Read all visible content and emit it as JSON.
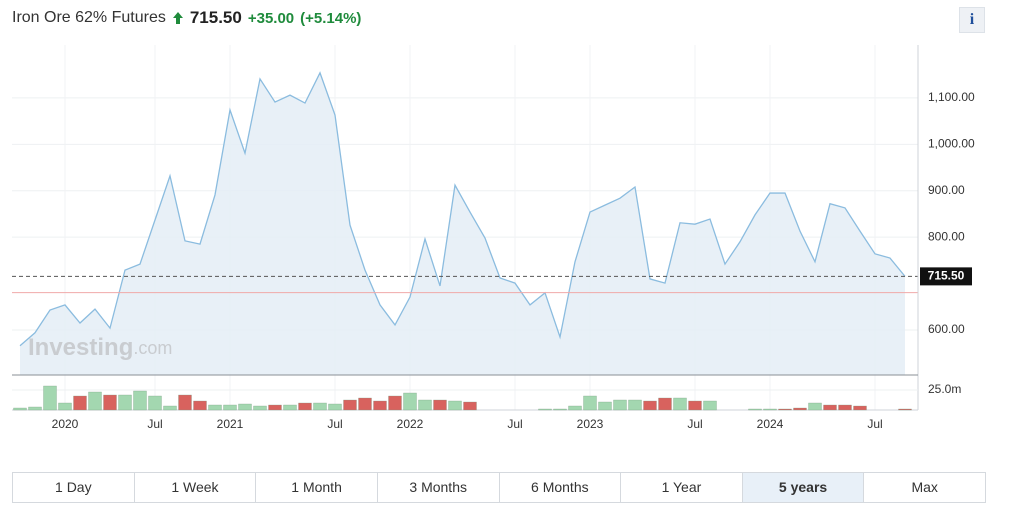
{
  "header": {
    "title": "Iron Ore 62% Futures",
    "price": "715.50",
    "change": "+35.00",
    "change_pct": "(+5.14%)",
    "info": "i"
  },
  "tabs": {
    "items": [
      "1 Day",
      "1 Week",
      "1 Month",
      "3 Months",
      "6 Months",
      "1 Year",
      "5 years",
      "Max"
    ],
    "selected": "5 years"
  },
  "chart_data": {
    "type": "line",
    "color": "#8bbcdf",
    "area_color": "#e4edf6",
    "grid": true,
    "watermark": [
      "Investing",
      ".com"
    ],
    "categories": [
      null,
      null,
      null,
      "2020",
      null,
      null,
      null,
      null,
      null,
      "Jul",
      null,
      null,
      null,
      null,
      "2021",
      null,
      null,
      null,
      null,
      null,
      null,
      "Jul",
      null,
      null,
      null,
      null,
      "2022",
      null,
      null,
      null,
      null,
      null,
      null,
      "Jul",
      null,
      null,
      null,
      null,
      "2023",
      null,
      null,
      null,
      null,
      null,
      null,
      "Jul",
      null,
      null,
      null,
      null,
      "2024",
      null,
      null,
      null,
      null,
      null,
      null,
      "Jul",
      null,
      null
    ],
    "values": [
      566,
      594,
      643,
      654,
      615,
      645,
      604,
      729,
      742,
      837,
      932,
      792,
      785,
      891,
      1074,
      981,
      1141,
      1091,
      1106,
      1089,
      1154,
      1063,
      826,
      729,
      654,
      611,
      671,
      796,
      695,
      912,
      854,
      798,
      712,
      701,
      654,
      680,
      585,
      747,
      854,
      869,
      884,
      908,
      710,
      701,
      831,
      828,
      839,
      742,
      790,
      848,
      895,
      895,
      813,
      747,
      872,
      863,
      813,
      764,
      755,
      715.5
    ],
    "ylim": [
      503,
      1214
    ],
    "yticks": [
      {
        "value": 600,
        "label": "600.00"
      },
      {
        "value": 800,
        "label": "800.00"
      },
      {
        "value": 900,
        "label": "900.00"
      },
      {
        "value": 1000,
        "label": "1,000.00"
      },
      {
        "value": 1100,
        "label": "1,100.00"
      }
    ],
    "current_price": {
      "value": 715.5,
      "label": "715.50"
    },
    "prev_close": 680.5,
    "volume": {
      "ylim": [
        0,
        40
      ],
      "yticks": [
        {
          "value": 25,
          "label": "25.0m"
        }
      ],
      "values": [
        2.5,
        3.75,
        30,
        8.75,
        17.5,
        22.5,
        18.75,
        18.75,
        23.75,
        17.5,
        5,
        18.75,
        11.25,
        6.25,
        6.25,
        7.5,
        5,
        6.25,
        6.25,
        8.75,
        8.75,
        7.5,
        12.5,
        15,
        11.25,
        17.5,
        21.25,
        12.5,
        12.5,
        11.25,
        10,
        null,
        null,
        null,
        null,
        1.25,
        1.25,
        5,
        17.5,
        10,
        12.5,
        12.5,
        11.25,
        15,
        15,
        11.25,
        11.25,
        null,
        null,
        1.25,
        1.25,
        1.25,
        2.5,
        8.75,
        6.25,
        6.25,
        5,
        null,
        null,
        1.25
      ],
      "colors": [
        "#a3d7b0",
        "#a3d7b0",
        "#a3d7b0",
        "#a3d7b0",
        "#d8625e",
        "#a3d7b0",
        "#d8625e",
        "#a3d7b0",
        "#a3d7b0",
        "#a3d7b0",
        "#a3d7b0",
        "#d8625e",
        "#d8625e",
        "#a3d7b0",
        "#a3d7b0",
        "#a3d7b0",
        "#a3d7b0",
        "#d8625e",
        "#a3d7b0",
        "#d8625e",
        "#a3d7b0",
        "#a3d7b0",
        "#d8625e",
        "#d8625e",
        "#d8625e",
        "#d8625e",
        "#a3d7b0",
        "#a3d7b0",
        "#d8625e",
        "#a3d7b0",
        "#d8625e",
        null,
        null,
        null,
        null,
        "#a3d7b0",
        "#a3d7b0",
        "#a3d7b0",
        "#a3d7b0",
        "#a3d7b0",
        "#a3d7b0",
        "#a3d7b0",
        "#d8625e",
        "#d8625e",
        "#a3d7b0",
        "#d8625e",
        "#a3d7b0",
        null,
        null,
        "#a3d7b0",
        "#a3d7b0",
        "#d8625e",
        "#d8625e",
        "#a3d7b0",
        "#d8625e",
        "#d8625e",
        "#d8625e",
        null,
        null,
        "#d8625e"
      ]
    }
  }
}
